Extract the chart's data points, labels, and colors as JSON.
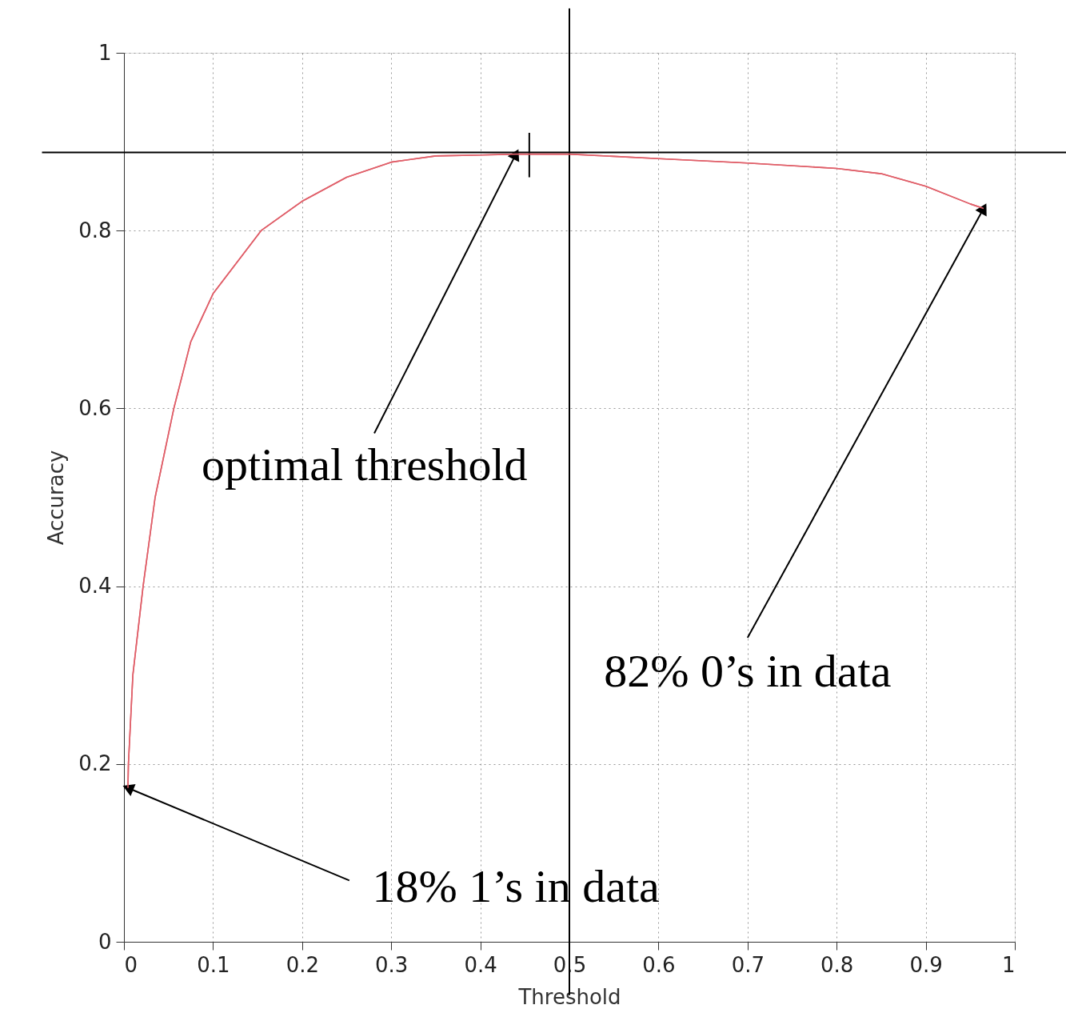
{
  "chart_data": {
    "type": "line",
    "xlabel": "Threshold",
    "ylabel": "Accuracy",
    "x": [
      0.0045,
      0.005,
      0.01,
      0.0215,
      0.035,
      0.056,
      0.075,
      0.1,
      0.154,
      0.2,
      0.25,
      0.3,
      0.35,
      0.4,
      0.44,
      0.5,
      0.6,
      0.7,
      0.8,
      0.85,
      0.9,
      0.95,
      0.965
    ],
    "series": [
      {
        "color": "#e0606a",
        "values": [
          0.173,
          0.2,
          0.3,
          0.4,
          0.5,
          0.6,
          0.675,
          0.729,
          0.8,
          0.833,
          0.86,
          0.877,
          0.884,
          0.885,
          0.886,
          0.886,
          0.881,
          0.876,
          0.87,
          0.864,
          0.85,
          0.83,
          0.825
        ]
      },
      {
        "type": "line",
        "color": "#000000",
        "x": [
          0.455,
          0.455
        ],
        "values": [
          0.86,
          0.91
        ]
      }
    ],
    "xlim": [
      0,
      1
    ],
    "ylim": [
      0,
      1
    ],
    "xticks": [
      0,
      0.1,
      0.2,
      0.3,
      0.4,
      0.5,
      0.6,
      0.7,
      0.8,
      0.9,
      1
    ],
    "yticks": [
      0,
      0.2,
      0.4,
      0.6,
      0.8,
      1
    ],
    "grid": true,
    "marker": "none",
    "line_style": "solid",
    "ref_lines": [
      {
        "axis": "y",
        "value": 0.888,
        "color": "#000000"
      },
      {
        "axis": "x",
        "value": 0.5,
        "color": "#000000"
      }
    ],
    "annotations": [
      {
        "text": "optimal threshold",
        "x": 0.44,
        "y": 0.886
      },
      {
        "text": "82% 0’s in data",
        "x": 0.965,
        "y": 0.825
      },
      {
        "text": "18% 1’s in data",
        "x": 0.0045,
        "y": 0.173
      }
    ]
  }
}
